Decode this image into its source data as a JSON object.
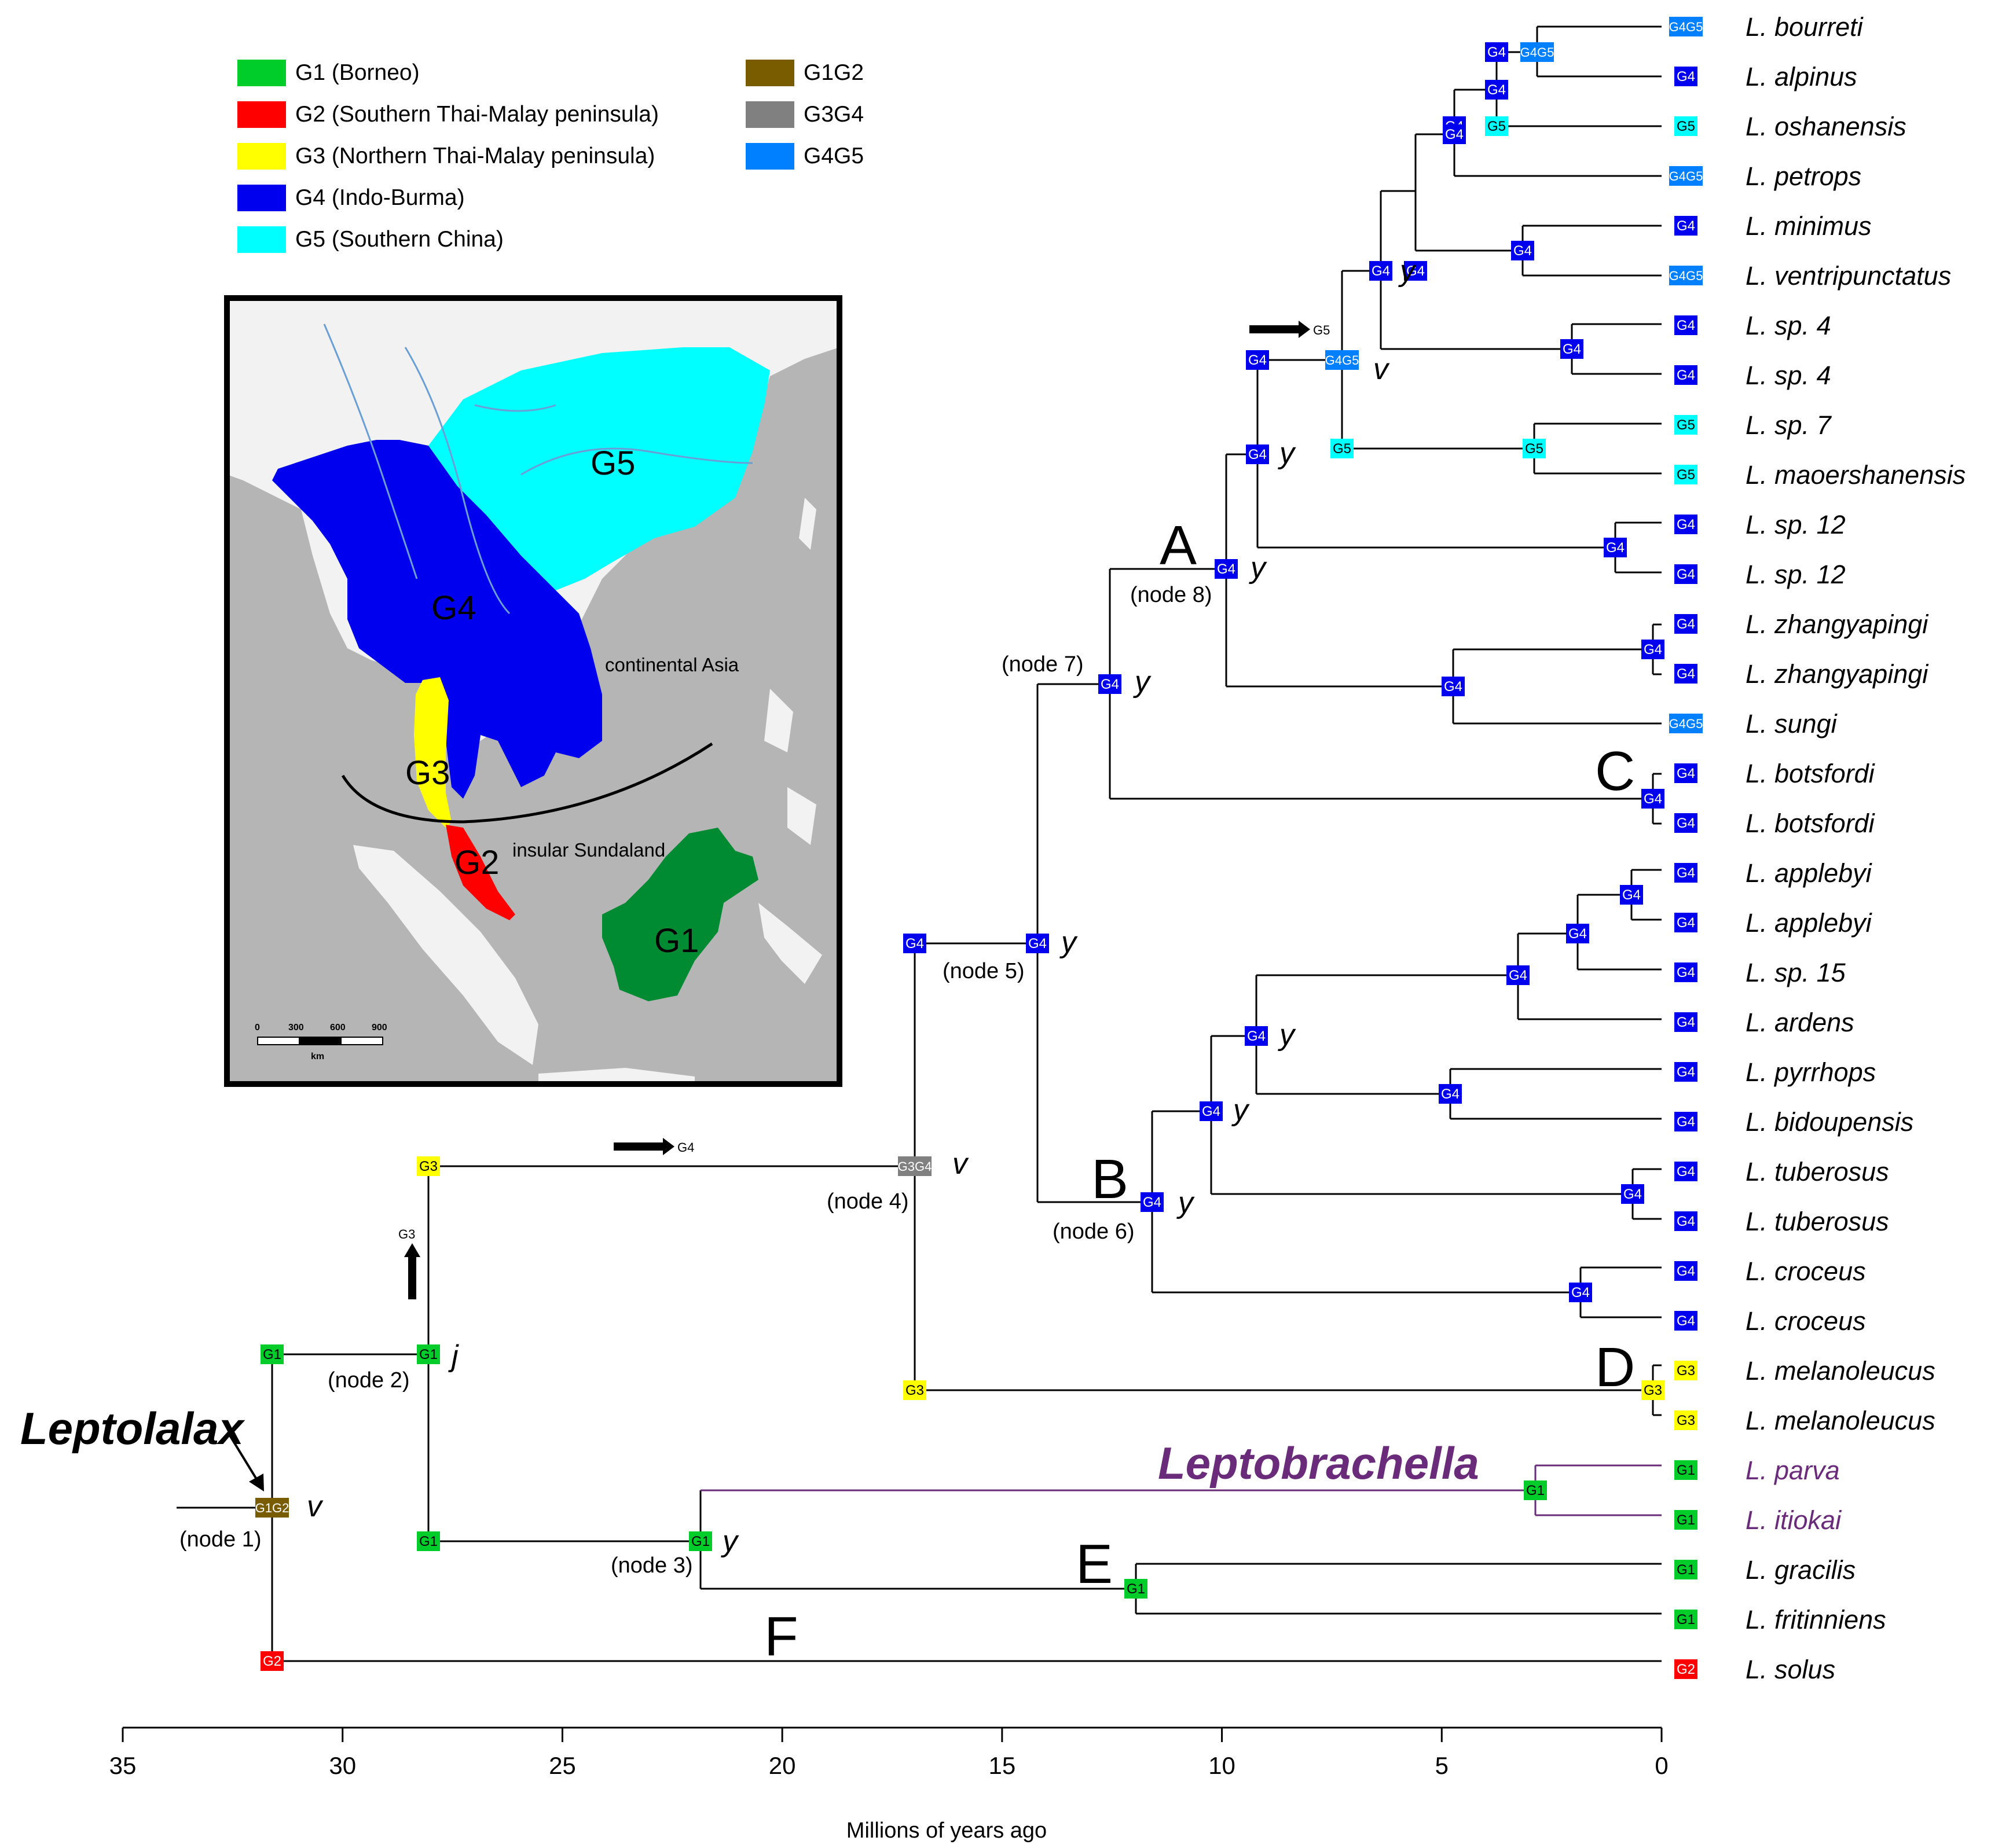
{
  "legend": {
    "items": [
      {
        "code": "G1",
        "label": "G1 (Borneo)",
        "color": "#00cc2a"
      },
      {
        "code": "G2",
        "label": "G2 (Southern Thai-Malay peninsula)",
        "color": "#ff0000"
      },
      {
        "code": "G3",
        "label": "G3 (Northern Thai-Malay peninsula)",
        "color": "#ffff00"
      },
      {
        "code": "G4",
        "label": "G4 (Indo-Burma)",
        "color": "#0000ee"
      },
      {
        "code": "G5",
        "label": "G5 (Southern China)",
        "color": "#00ffff"
      },
      {
        "code": "G1G2",
        "label": "G1G2",
        "color": "#7a5c00"
      },
      {
        "code": "G3G4",
        "label": "G3G4",
        "color": "#808080"
      },
      {
        "code": "G4G5",
        "label": "G4G5",
        "color": "#0080ff"
      }
    ]
  },
  "map": {
    "labels": {
      "g5": "G5",
      "g4": "G4",
      "g3": "G3",
      "g2": "G2",
      "g1": "G1",
      "continental": "continental Asia",
      "insular": "insular Sundaland"
    },
    "scale": {
      "ticks": [
        "0",
        "300",
        "600",
        "900"
      ],
      "unit": "km"
    },
    "colors": {
      "water": "#f2f2f2",
      "land": "#b5b5b5",
      "g1": "#008a32",
      "g2": "#ff0000",
      "g3": "#ffff00",
      "g4": "#0000ee",
      "g5": "#00ffff"
    }
  },
  "axis": {
    "title": "Millions of years ago",
    "ticks": [
      35,
      30,
      25,
      20,
      15,
      10,
      5,
      0
    ],
    "range": [
      35,
      0
    ]
  },
  "genera": {
    "leptolalax": "Leptolalax",
    "leptobrachella": "Leptobrachella"
  },
  "clades": {
    "A": "A",
    "B": "B",
    "C": "C",
    "D": "D",
    "E": "E",
    "F": "F"
  },
  "node_labels": {
    "node1": "(node 1)",
    "node2": "(node 2)",
    "node3": "(node 3)",
    "node4": "(node 4)",
    "node5": "(node 5)",
    "node6": "(node 6)",
    "node7": "(node 7)",
    "node8": "(node 8)"
  },
  "arrows": {
    "g4": "G4",
    "g3": "G3",
    "g5": "G5"
  },
  "taxa": [
    {
      "name": "L. bourreti",
      "area": "G4G5"
    },
    {
      "name": "L. alpinus",
      "area": "G4"
    },
    {
      "name": "L. oshanensis",
      "area": "G5"
    },
    {
      "name": "L. petrops",
      "area": "G4G5"
    },
    {
      "name": "L. minimus",
      "area": "G4"
    },
    {
      "name": "L. ventripunctatus",
      "area": "G4G5"
    },
    {
      "name": "L. sp. 4",
      "area": "G4"
    },
    {
      "name": "L. sp. 4",
      "area": "G4"
    },
    {
      "name": "L. sp. 7",
      "area": "G5"
    },
    {
      "name": "L. maoershanensis",
      "area": "G5"
    },
    {
      "name": "L. sp. 12",
      "area": "G4"
    },
    {
      "name": "L. sp. 12",
      "area": "G4"
    },
    {
      "name": "L. zhangyapingi",
      "area": "G4"
    },
    {
      "name": "L. zhangyapingi",
      "area": "G4"
    },
    {
      "name": "L. sungi",
      "area": "G4G5"
    },
    {
      "name": "L. botsfordi",
      "area": "G4"
    },
    {
      "name": "L. botsfordi",
      "area": "G4"
    },
    {
      "name": "L. applebyi",
      "area": "G4"
    },
    {
      "name": "L. applebyi",
      "area": "G4"
    },
    {
      "name": "L. sp. 15",
      "area": "G4"
    },
    {
      "name": "L. ardens",
      "area": "G4"
    },
    {
      "name": "L. pyrrhops",
      "area": "G4"
    },
    {
      "name": "L. bidoupensis",
      "area": "G4"
    },
    {
      "name": "L. tuberosus",
      "area": "G4"
    },
    {
      "name": "L. tuberosus",
      "area": "G4"
    },
    {
      "name": "L. croceus",
      "area": "G4"
    },
    {
      "name": "L. croceus",
      "area": "G4"
    },
    {
      "name": "L. melanoleucus",
      "area": "G3"
    },
    {
      "name": "L. melanoleucus",
      "area": "G3"
    },
    {
      "name": "L. parva",
      "area": "G1",
      "purple": true
    },
    {
      "name": "L. itiokai",
      "area": "G1",
      "purple": true
    },
    {
      "name": "L. gracilis",
      "area": "G1"
    },
    {
      "name": "L. fritinniens",
      "area": "G1"
    },
    {
      "name": "L. solus",
      "area": "G2"
    }
  ],
  "internal_nodes": [
    {
      "area": "G4G5"
    },
    {
      "area": "G4"
    },
    {
      "area": "G4"
    },
    {
      "area": "G4"
    },
    {
      "area": "G5"
    },
    {
      "area": "G4"
    },
    {
      "area": "G4"
    },
    {
      "area": "G4"
    },
    {
      "area": "G4"
    },
    {
      "area": "G4"
    },
    {
      "area": "G4G5"
    },
    {
      "area": "G4"
    },
    {
      "area": "G5"
    },
    {
      "area": "G5"
    },
    {
      "area": "G4"
    },
    {
      "area": "G4"
    },
    {
      "area": "G4"
    },
    {
      "area": "G4"
    },
    {
      "area": "G4"
    },
    {
      "area": "G4"
    },
    {
      "area": "G4"
    },
    {
      "area": "G4"
    },
    {
      "area": "G4"
    },
    {
      "area": "G4"
    },
    {
      "area": "G4"
    },
    {
      "area": "G4"
    },
    {
      "area": "G4"
    },
    {
      "area": "G4"
    },
    {
      "area": "G4"
    },
    {
      "area": "G4"
    },
    {
      "area": "G4"
    },
    {
      "area": "G4"
    },
    {
      "area": "G4"
    },
    {
      "area": "G3G4"
    },
    {
      "area": "G3"
    },
    {
      "area": "G3"
    },
    {
      "area": "G3"
    },
    {
      "area": "G1"
    },
    {
      "area": "G1"
    },
    {
      "area": "G1"
    },
    {
      "area": "G1"
    },
    {
      "area": "G1"
    },
    {
      "area": "G1"
    },
    {
      "area": "G1G2"
    },
    {
      "area": "G2"
    }
  ],
  "node_suffixes": {
    "v": "v",
    "y": "y",
    "j": "j"
  }
}
